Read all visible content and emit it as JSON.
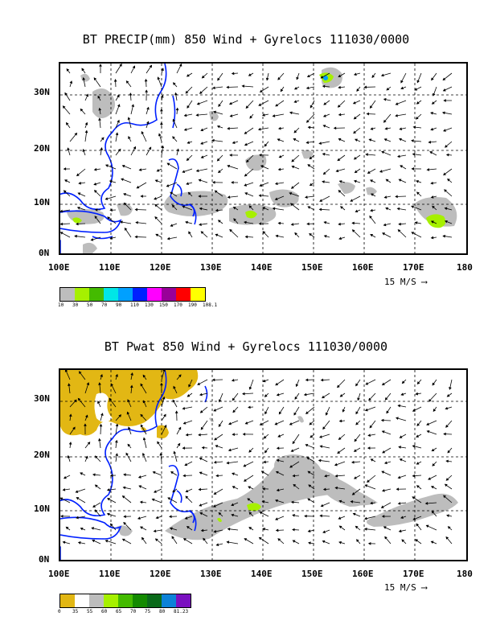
{
  "top": {
    "title": "BT PRECIP(mm) 850 Wind + Gyrelocs 111030/0000",
    "legend": {
      "colors": [
        "#bdbdbd",
        "#a6f000",
        "#44bb00",
        "#00e6e6",
        "#00a0ff",
        "#0020ff",
        "#ff00ff",
        "#990099",
        "#ff0000",
        "#ffff00"
      ],
      "labels": [
        "10",
        "30",
        "50",
        "70",
        "90",
        "110",
        "130",
        "150",
        "170",
        "190",
        "108.1"
      ]
    }
  },
  "bottom": {
    "title": "BT Pwat 850 Wind + Gyrelocs 111030/0000",
    "legend": {
      "colors": [
        "#e2b714",
        "#ffffff",
        "#bdbdbd",
        "#a6f000",
        "#44bb00",
        "#138a00",
        "#0a6a1a",
        "#0c82d8",
        "#7a10c0"
      ],
      "labels": [
        "0",
        "35",
        "55",
        "60",
        "65",
        "70",
        "75",
        "80",
        "81.23"
      ]
    }
  },
  "axes": {
    "lon_labels": [
      "100E",
      "110E",
      "120E",
      "130E",
      "140E",
      "150E",
      "160E",
      "170E",
      "180"
    ],
    "lat_labels": [
      "30N",
      "20N",
      "10N",
      "0N"
    ]
  },
  "reference_vector": "15 M/S"
}
